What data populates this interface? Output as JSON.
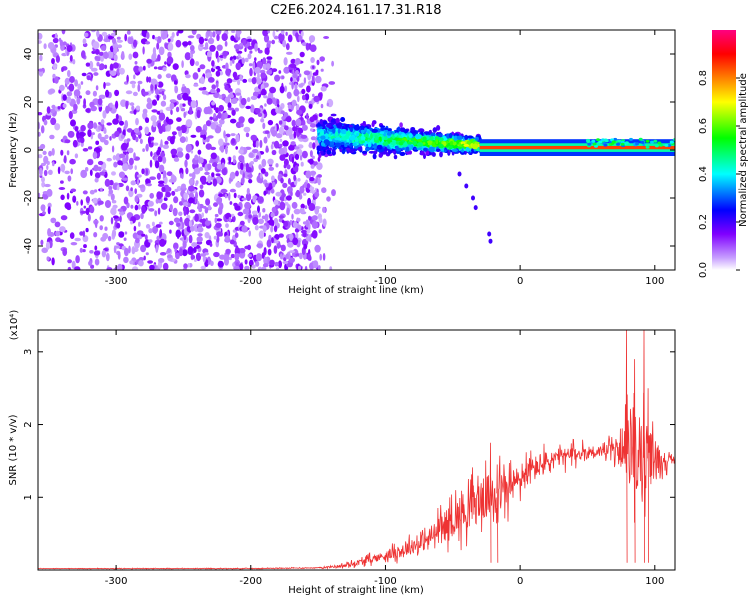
{
  "title": "C2E6.2024.161.17.31.R18",
  "chart_data": [
    {
      "type": "heatmap",
      "description_of_rendering": "spectrogram",
      "xlabel": "Height of straight line (km)",
      "ylabel": "Frequency (Hz)",
      "xlim": [
        -358,
        115
      ],
      "ylim": [
        -50,
        50
      ],
      "xticks": [
        -300,
        -200,
        -100,
        0,
        100
      ],
      "yticks": [
        -40,
        -20,
        0,
        20,
        40
      ],
      "colorbar": {
        "label": "Normalized spectral amplitude",
        "range": [
          0,
          1
        ],
        "ticks": [
          "0.0",
          "0.2",
          "0.4",
          "0.6",
          "0.8"
        ],
        "colormap": [
          "#ffffff",
          "#c8a0ff",
          "#8000ff",
          "#0000ff",
          "#00ffff",
          "#00ff00",
          "#ffff00",
          "#ff8000",
          "#ff0000",
          "#ff0080"
        ]
      },
      "regions": [
        {
          "name": "noise",
          "x": [
            -358,
            -150
          ],
          "y": [
            -50,
            50
          ],
          "amplitude": [
            0.0,
            0.15
          ]
        },
        {
          "name": "transition",
          "x": [
            -150,
            -30
          ],
          "center_y": [
            6,
            2
          ],
          "spread_y": [
            9,
            4
          ],
          "amplitude": [
            0.15,
            0.55
          ]
        },
        {
          "name": "tail",
          "points": [
            [
              -45,
              -10
            ],
            [
              -40,
              -15
            ],
            [
              -35,
              -20
            ],
            [
              -33,
              -24
            ],
            [
              -23,
              -35
            ],
            [
              -22,
              -38
            ]
          ]
        },
        {
          "name": "carrier",
          "x": [
            -30,
            115
          ],
          "y": 1,
          "amplitude": 0.85
        }
      ]
    },
    {
      "type": "line",
      "xlabel": "Height of straight line (km)",
      "ylabel": "SNR (10 * v/v)",
      "scale_label": "(x10⁴)",
      "line_color": "#ee3333",
      "xlim": [
        -358,
        115
      ],
      "ylim": [
        0,
        3.3
      ],
      "xticks": [
        -300,
        -200,
        -100,
        0,
        100
      ],
      "yticks": [
        1,
        2,
        3
      ],
      "series": [
        {
          "envelope_points": [
            [
              -358,
              0.02
            ],
            [
              -200,
              0.02
            ],
            [
              -150,
              0.03
            ],
            [
              -130,
              0.06
            ],
            [
              -110,
              0.15
            ],
            [
              -90,
              0.25
            ],
            [
              -70,
              0.4
            ],
            [
              -50,
              0.7
            ],
            [
              -35,
              0.9
            ],
            [
              -25,
              1.0
            ],
            [
              -10,
              1.1
            ],
            [
              0,
              1.25
            ],
            [
              15,
              1.45
            ],
            [
              30,
              1.55
            ],
            [
              50,
              1.62
            ],
            [
              70,
              1.65
            ],
            [
              80,
              1.65
            ],
            [
              90,
              1.55
            ],
            [
              100,
              1.52
            ],
            [
              110,
              1.5
            ],
            [
              115,
              1.52
            ]
          ],
          "noise_amplitude": [
            [
              -358,
              0.005
            ],
            [
              -150,
              0.01
            ],
            [
              -130,
              0.05
            ],
            [
              -100,
              0.12
            ],
            [
              -70,
              0.25
            ],
            [
              -40,
              0.55
            ],
            [
              -20,
              0.6
            ],
            [
              0,
              0.4
            ],
            [
              30,
              0.25
            ],
            [
              60,
              0.15
            ],
            [
              75,
              0.3
            ],
            [
              80,
              0.9
            ],
            [
              90,
              1.1
            ],
            [
              100,
              0.6
            ],
            [
              110,
              0.15
            ],
            [
              115,
              0.08
            ]
          ],
          "peaks": [
            [
              -22,
              1.75
            ],
            [
              -17,
              1.45
            ],
            [
              79,
              3.3
            ],
            [
              85,
              2.9
            ],
            [
              92,
              3.3
            ],
            [
              95,
              2.5
            ]
          ]
        }
      ]
    }
  ]
}
